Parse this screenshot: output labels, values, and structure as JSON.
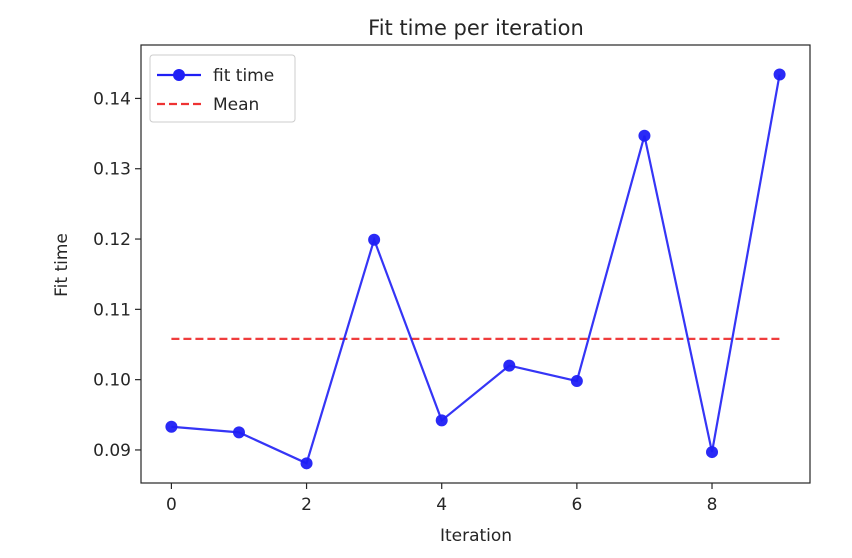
{
  "chart_data": {
    "type": "line",
    "title": "Fit time per iteration",
    "xlabel": "Iteration",
    "ylabel": "Fit time",
    "xlim": [
      -0.45,
      9.45
    ],
    "ylim": [
      0.0853,
      0.1476
    ],
    "x_ticks": [
      0,
      2,
      4,
      6,
      8
    ],
    "y_ticks": [
      0.09,
      0.1,
      0.11,
      0.12,
      0.13,
      0.14
    ],
    "y_tick_labels": [
      "0.09",
      "0.10",
      "0.11",
      "0.12",
      "0.13",
      "0.14"
    ],
    "x_tick_labels": [
      "0",
      "2",
      "4",
      "6",
      "8"
    ],
    "grid": false,
    "legend_position": "top-left",
    "series": [
      {
        "name": "fit time",
        "style": "solid-line-with-circle-markers",
        "color": "#1f1ff5",
        "x": [
          0,
          1,
          2,
          3,
          4,
          5,
          6,
          7,
          8,
          9
        ],
        "y": [
          0.0933,
          0.0925,
          0.0881,
          0.1199,
          0.0942,
          0.102,
          0.0998,
          0.1347,
          0.0897,
          0.1434
        ]
      },
      {
        "name": "Mean",
        "style": "dashed-line",
        "color": "#ee3333",
        "x": [
          0,
          9
        ],
        "y": [
          0.1058,
          0.1058
        ]
      }
    ]
  }
}
